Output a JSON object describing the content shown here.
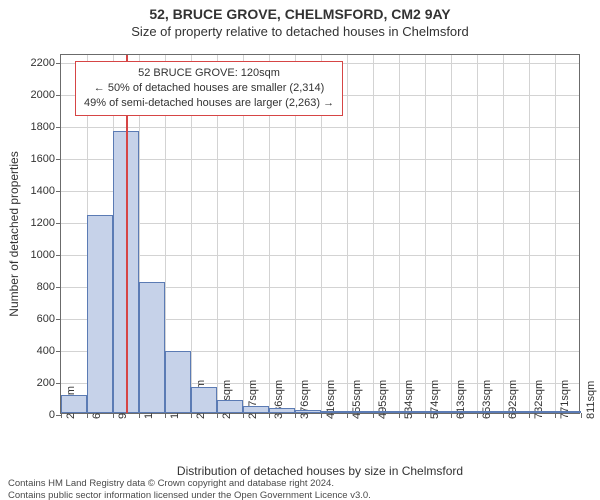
{
  "title": "52, BRUCE GROVE, CHELMSFORD, CM2 9AY",
  "subtitle": "Size of property relative to detached houses in Chelmsford",
  "y_axis": {
    "label": "Number of detached properties",
    "min": 0,
    "max": 2250,
    "ticks": [
      0,
      200,
      400,
      600,
      800,
      1000,
      1200,
      1400,
      1600,
      1800,
      2000,
      2200
    ]
  },
  "x_axis": {
    "label": "Distribution of detached houses by size in Chelmsford",
    "ticks": [
      "20sqm",
      "60sqm",
      "99sqm",
      "139sqm",
      "178sqm",
      "218sqm",
      "257sqm",
      "297sqm",
      "336sqm",
      "376sqm",
      "416sqm",
      "455sqm",
      "495sqm",
      "534sqm",
      "574sqm",
      "613sqm",
      "653sqm",
      "692sqm",
      "732sqm",
      "771sqm",
      "811sqm"
    ]
  },
  "bars": {
    "values": [
      110,
      1235,
      1765,
      820,
      385,
      160,
      80,
      45,
      30,
      20,
      12,
      8,
      6,
      4,
      3,
      2,
      2,
      1,
      1,
      1
    ],
    "fill": "#c6d2e9",
    "stroke": "#5b7bb4"
  },
  "marker": {
    "tick_index": 2.55,
    "color": "#d64545",
    "lines": [
      "52 BRUCE GROVE: 120sqm",
      "← 50% of detached houses are smaller (2,314)",
      "49% of semi-detached houses are larger (2,263) →"
    ]
  },
  "grid_color": "#d3d3d3",
  "axis_color": "#6b6b6b",
  "background_color": "#ffffff",
  "footer": [
    "Contains HM Land Registry data © Crown copyright and database right 2024.",
    "Contains public sector information licensed under the Open Government Licence v3.0."
  ]
}
